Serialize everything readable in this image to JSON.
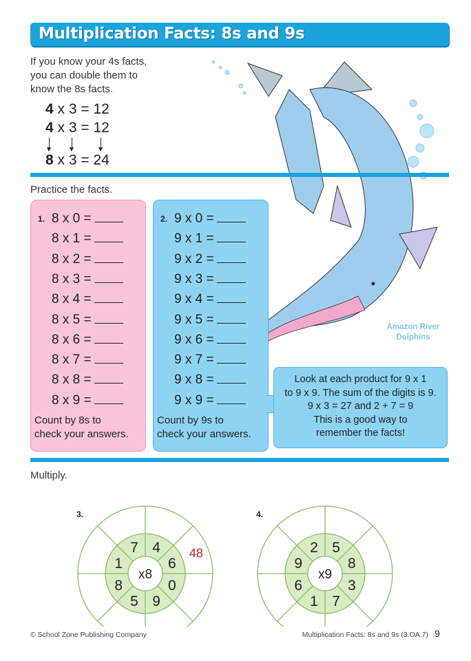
{
  "title": "Multiplication Facts: 8s and 9s",
  "intro": {
    "lines": [
      "If you know your 4s facts,",
      "you can double them to",
      "know the 8s facts."
    ],
    "equations": [
      {
        "a": "4",
        "rest": " x 3 = 12"
      },
      {
        "a": "4",
        "rest": " x 3 = 12"
      },
      {
        "a": "8",
        "rest": " x 3 = 24"
      }
    ]
  },
  "practice_label": "Practice the facts.",
  "eights": {
    "number": "1.",
    "facts": [
      "8 x 0 =",
      "8 x 1 =",
      "8 x 2 =",
      "8 x 3 =",
      "8 x 4 =",
      "8 x 5 =",
      "8 x 6 =",
      "8 x 7 =",
      "8 x 8 =",
      "8 x 9 ="
    ],
    "note": [
      "Count by 8s to",
      "check your answers."
    ],
    "color": "#f8c4dc"
  },
  "nines": {
    "number": "2.",
    "facts": [
      "9 x 0 =",
      "9 x 1 =",
      "9 x 2 =",
      "9 x 3 =",
      "9 x 4 =",
      "9 x 5 =",
      "9 x 6 =",
      "9 x 7 =",
      "9 x 8 =",
      "9 x 9 ="
    ],
    "note": [
      "Count by 9s to",
      "check your answers."
    ],
    "color": "#8fd3f3"
  },
  "tip": [
    "Look at each product for 9 x 1",
    "to 9 x 9. The sum of the digits is 9.",
    "9 x 3 = 27 and 2 + 7 = 9",
    "This is a good way to",
    "remember the facts!"
  ],
  "illustration_caption": [
    "Amazon River",
    "Dolphins"
  ],
  "multiply_label": "Multiply.",
  "wheels": [
    {
      "number": "3.",
      "center": "x8",
      "inner": [
        "6",
        "4",
        "7",
        "1",
        "8",
        "5",
        "9",
        "0"
      ],
      "outer": [
        "48",
        "",
        "",
        "",
        "",
        "",
        "",
        ""
      ]
    },
    {
      "number": "4.",
      "center": "x9",
      "inner": [
        "8",
        "5",
        "2",
        "9",
        "6",
        "1",
        "7",
        "3"
      ],
      "outer": [
        "",
        "",
        "",
        "",
        "",
        "",
        "",
        ""
      ]
    }
  ],
  "colors": {
    "accent": "#1ba3dc",
    "wheel_green": "#d9ebc4",
    "wheel_line": "#8cb866",
    "answer_red": "#c8202f"
  },
  "footer": {
    "left": "© School Zone Publishing Company",
    "right": "Multiplication Facts: 8s and 9s (3.OA.7)",
    "page": "9"
  }
}
